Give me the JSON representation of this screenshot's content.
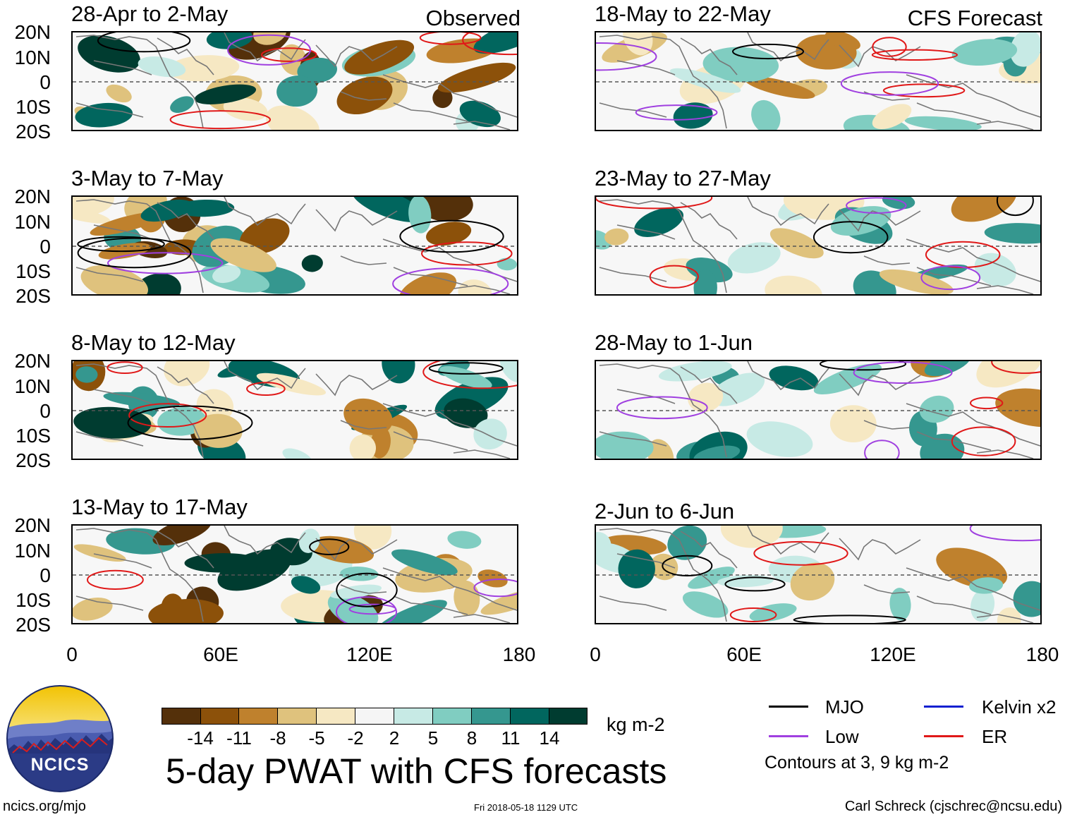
{
  "colors": {
    "mjo": "#000000",
    "low": "#a040e0",
    "kelvin": "#1020d0",
    "er": "#e01818",
    "coast": "#777777"
  },
  "left_tag": "Observed",
  "right_tag": "CFS Forecast",
  "panels": [
    {
      "title": "28-Apr to 2-May"
    },
    {
      "title": "3-May to 7-May"
    },
    {
      "title": "8-May to 12-May"
    },
    {
      "title": "13-May to 17-May"
    },
    {
      "title": "18-May to 22-May"
    },
    {
      "title": "23-May to 27-May"
    },
    {
      "title": "28-May to 1-Jun"
    },
    {
      "title": "2-Jun to 6-Jun"
    }
  ],
  "y_axis": [
    "20N",
    "10N",
    "0",
    "10S",
    "20S"
  ],
  "x_axis": [
    "0",
    "60E",
    "120E",
    "180"
  ],
  "colorbar": {
    "unit": "kg m-2",
    "labels": [
      "-14",
      "-11",
      "-8",
      "-5",
      "-2",
      "2",
      "5",
      "8",
      "11",
      "14"
    ],
    "colors": [
      "#54300a",
      "#8c510a",
      "#bf812d",
      "#dfc27d",
      "#f6e8c3",
      "#f5f5f5",
      "#c7eae5",
      "#80cdc1",
      "#35978f",
      "#01665e",
      "#003c30"
    ]
  },
  "legend": {
    "mjo": "MJO",
    "kelvin": "Kelvin x2",
    "low": "Low",
    "er": "ER",
    "note": "Contours at 3, 9 kg m-2"
  },
  "logo_text": "NCICS",
  "main_title": "5-day PWAT with CFS forecasts",
  "footer": {
    "url": "ncics.org/mjo",
    "timestamp": "Fri 2018-05-18 1129 UTC",
    "credit": "Carl Schreck (cjschrec@ncsu.edu)"
  }
}
